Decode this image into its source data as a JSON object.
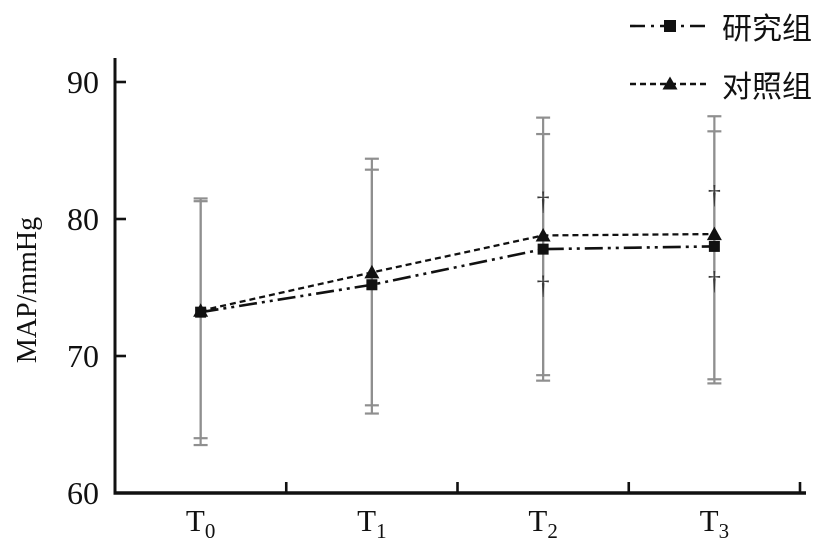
{
  "chart_data": {
    "type": "line",
    "title": "",
    "xlabel": "",
    "ylabel": "MAP/mmHg",
    "ylim": [
      60,
      90
    ],
    "yticks": [
      60,
      70,
      80,
      90
    ],
    "categories": [
      "T0",
      "T1",
      "T2",
      "T3"
    ],
    "category_labels": [
      {
        "base": "T",
        "sub": "0"
      },
      {
        "base": "T",
        "sub": "1"
      },
      {
        "base": "T",
        "sub": "2"
      },
      {
        "base": "T",
        "sub": "3"
      }
    ],
    "grid": false,
    "legend_position": "top-right",
    "colors": {
      "line": "#111111",
      "axis": "#111111",
      "error_bar": "#8f8f8f",
      "annotation": "#3a3a3a"
    },
    "series": [
      {
        "name": "研究组",
        "marker": "square",
        "dash": "dash-dot-dot",
        "values": [
          73.2,
          75.2,
          77.8,
          78.0
        ],
        "err_lo": [
          63.5,
          65.8,
          68.2,
          68.0
        ],
        "err_hi": [
          81.3,
          83.6,
          86.2,
          86.4
        ]
      },
      {
        "name": "对照组",
        "marker": "triangle",
        "dash": "dashed",
        "values": [
          73.3,
          76.1,
          78.8,
          78.9
        ],
        "err_lo": [
          64.0,
          66.4,
          68.6,
          68.3
        ],
        "err_hi": [
          81.5,
          84.4,
          87.4,
          87.5
        ]
      }
    ],
    "annotations": [
      {
        "x": 2,
        "y": 81.3,
        "text": "†"
      },
      {
        "x": 2,
        "y": 75.2,
        "text": "†"
      },
      {
        "x": 3,
        "y": 81.8,
        "text": "†"
      },
      {
        "x": 3,
        "y": 75.5,
        "text": "†"
      }
    ]
  }
}
